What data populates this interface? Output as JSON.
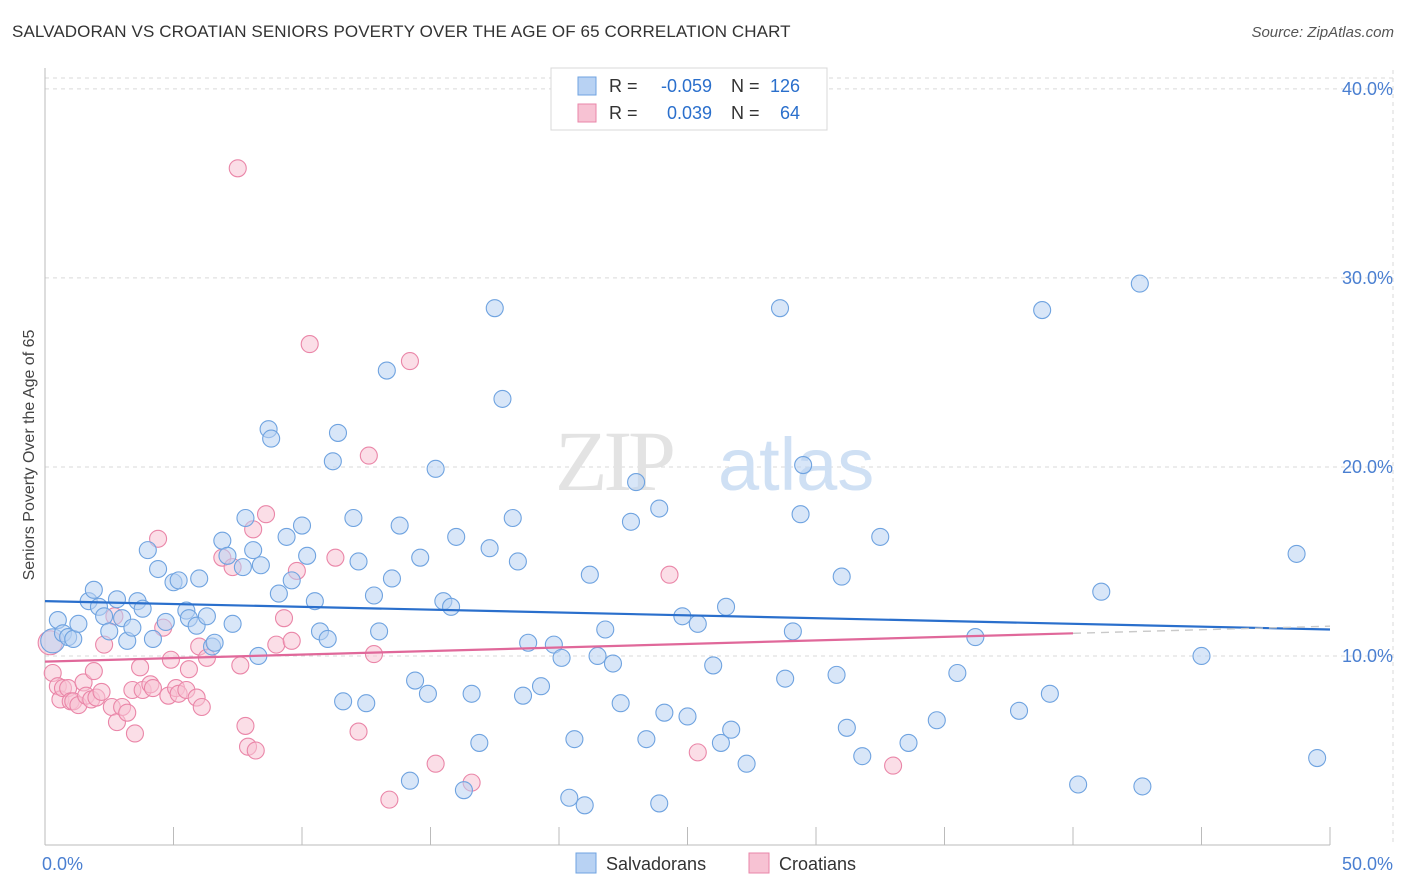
{
  "title": "SALVADORAN VS CROATIAN SENIORS POVERTY OVER THE AGE OF 65 CORRELATION CHART",
  "source": "Source: ZipAtlas.com",
  "watermark": {
    "zip": "ZIP",
    "atlas": "atlas"
  },
  "colors": {
    "blue": "#6fa3e0",
    "blue_fill": "#b8d2f3",
    "blue_line": "#2a6fcc",
    "pink": "#ea86a8",
    "pink_fill": "#f7c2d3",
    "pink_line": "#e0689a",
    "axis_text": "#4a7fd1",
    "grid": "#d9d9d9"
  },
  "legend": {
    "rows": [
      {
        "r_label": "R =",
        "r_value": "-0.059",
        "n_label": "N =",
        "n_value": "126",
        "series": "blue"
      },
      {
        "r_label": "R =",
        "r_value": "0.039",
        "n_label": "N =",
        "n_value": "64",
        "series": "pink"
      }
    ]
  },
  "chart_data": {
    "type": "scatter",
    "title": "SALVADORAN VS CROATIAN SENIORS POVERTY OVER THE AGE OF 65 CORRELATION CHART",
    "xlabel": "",
    "ylabel": "Seniors Poverty Over the Age of 65",
    "xlim": [
      0,
      50
    ],
    "ylim": [
      0,
      41
    ],
    "x_tick_labels": [
      "0.0%",
      "50.0%"
    ],
    "y_ticks": [
      10,
      20,
      30,
      40
    ],
    "y_tick_labels": [
      "10.0%",
      "20.0%",
      "30.0%",
      "40.0%"
    ],
    "series": [
      {
        "name": "Salvadorans",
        "color": "blue",
        "trend": {
          "x": [
            0,
            50
          ],
          "y": [
            12.9,
            11.4
          ],
          "dashed_from": null
        },
        "points": [
          [
            0.3,
            10.8
          ],
          [
            0.5,
            11.9
          ],
          [
            0.7,
            11.2
          ],
          [
            0.9,
            11.0
          ],
          [
            1.1,
            10.9
          ],
          [
            1.3,
            11.7
          ],
          [
            1.7,
            12.9
          ],
          [
            1.9,
            13.5
          ],
          [
            2.1,
            12.6
          ],
          [
            2.3,
            12.1
          ],
          [
            2.5,
            11.3
          ],
          [
            2.8,
            13.0
          ],
          [
            3.0,
            12.0
          ],
          [
            3.2,
            10.8
          ],
          [
            3.4,
            11.5
          ],
          [
            3.6,
            12.9
          ],
          [
            3.8,
            12.5
          ],
          [
            4.0,
            15.6
          ],
          [
            4.2,
            10.9
          ],
          [
            4.4,
            14.6
          ],
          [
            4.7,
            11.8
          ],
          [
            5.0,
            13.9
          ],
          [
            5.2,
            14.0
          ],
          [
            5.5,
            12.4
          ],
          [
            5.6,
            12.0
          ],
          [
            5.9,
            11.6
          ],
          [
            6.0,
            14.1
          ],
          [
            6.3,
            12.1
          ],
          [
            6.5,
            10.5
          ],
          [
            6.6,
            10.7
          ],
          [
            6.9,
            16.1
          ],
          [
            7.1,
            15.3
          ],
          [
            7.3,
            11.7
          ],
          [
            7.7,
            14.7
          ],
          [
            7.8,
            17.3
          ],
          [
            8.1,
            15.6
          ],
          [
            8.3,
            10.0
          ],
          [
            8.4,
            14.8
          ],
          [
            8.7,
            22.0
          ],
          [
            8.8,
            21.5
          ],
          [
            9.1,
            13.3
          ],
          [
            9.4,
            16.3
          ],
          [
            9.6,
            14.0
          ],
          [
            10.0,
            16.9
          ],
          [
            10.2,
            15.3
          ],
          [
            10.5,
            12.9
          ],
          [
            10.7,
            11.3
          ],
          [
            11.0,
            10.9
          ],
          [
            11.2,
            20.3
          ],
          [
            11.4,
            21.8
          ],
          [
            11.6,
            7.6
          ],
          [
            12.0,
            17.3
          ],
          [
            12.2,
            15.0
          ],
          [
            12.5,
            7.5
          ],
          [
            12.8,
            13.2
          ],
          [
            13.0,
            11.3
          ],
          [
            13.3,
            25.1
          ],
          [
            13.5,
            14.1
          ],
          [
            13.8,
            16.9
          ],
          [
            14.2,
            3.4
          ],
          [
            14.4,
            8.7
          ],
          [
            14.6,
            15.2
          ],
          [
            14.9,
            8.0
          ],
          [
            15.2,
            19.9
          ],
          [
            15.5,
            12.9
          ],
          [
            15.8,
            12.6
          ],
          [
            16.0,
            16.3
          ],
          [
            16.3,
            2.9
          ],
          [
            16.6,
            8.0
          ],
          [
            16.9,
            5.4
          ],
          [
            17.3,
            15.7
          ],
          [
            17.5,
            28.4
          ],
          [
            17.8,
            23.6
          ],
          [
            18.2,
            17.3
          ],
          [
            18.4,
            15.0
          ],
          [
            18.6,
            7.9
          ],
          [
            18.8,
            10.7
          ],
          [
            19.3,
            8.4
          ],
          [
            19.8,
            10.6
          ],
          [
            20.1,
            9.9
          ],
          [
            20.4,
            2.5
          ],
          [
            20.6,
            5.6
          ],
          [
            21.0,
            2.1
          ],
          [
            21.2,
            14.3
          ],
          [
            21.5,
            10.0
          ],
          [
            21.8,
            11.4
          ],
          [
            22.1,
            9.6
          ],
          [
            22.4,
            7.5
          ],
          [
            22.8,
            17.1
          ],
          [
            23.0,
            19.2
          ],
          [
            23.4,
            5.6
          ],
          [
            23.9,
            17.8
          ],
          [
            24.1,
            7.0
          ],
          [
            23.9,
            2.2
          ],
          [
            24.8,
            12.1
          ],
          [
            25.0,
            6.8
          ],
          [
            25.4,
            11.7
          ],
          [
            26.0,
            9.5
          ],
          [
            26.3,
            5.4
          ],
          [
            26.5,
            12.6
          ],
          [
            26.7,
            6.1
          ],
          [
            27.3,
            4.3
          ],
          [
            28.6,
            28.4
          ],
          [
            28.8,
            8.8
          ],
          [
            29.1,
            11.3
          ],
          [
            29.5,
            20.1
          ],
          [
            29.4,
            17.5
          ],
          [
            30.8,
            9.0
          ],
          [
            31.0,
            14.2
          ],
          [
            31.2,
            6.2
          ],
          [
            31.8,
            4.7
          ],
          [
            32.5,
            16.3
          ],
          [
            33.6,
            5.4
          ],
          [
            34.7,
            6.6
          ],
          [
            35.5,
            9.1
          ],
          [
            36.2,
            11.0
          ],
          [
            37.9,
            7.1
          ],
          [
            38.8,
            28.3
          ],
          [
            39.1,
            8.0
          ],
          [
            40.2,
            3.2
          ],
          [
            41.1,
            13.4
          ],
          [
            42.6,
            29.7
          ],
          [
            42.7,
            3.1
          ],
          [
            45.0,
            10.0
          ],
          [
            48.7,
            15.4
          ],
          [
            49.5,
            4.6
          ]
        ]
      },
      {
        "name": "Croatians",
        "color": "pink",
        "trend": {
          "x": [
            0,
            40
          ],
          "y": [
            9.7,
            11.2
          ],
          "dashed_from": 40
        },
        "points": [
          [
            0.2,
            10.7
          ],
          [
            0.3,
            9.1
          ],
          [
            0.5,
            8.4
          ],
          [
            0.6,
            7.7
          ],
          [
            0.7,
            8.3
          ],
          [
            0.9,
            8.3
          ],
          [
            1.0,
            7.6
          ],
          [
            1.1,
            7.6
          ],
          [
            1.3,
            7.4
          ],
          [
            1.5,
            8.6
          ],
          [
            1.6,
            7.9
          ],
          [
            1.8,
            7.7
          ],
          [
            1.9,
            9.2
          ],
          [
            2.0,
            7.8
          ],
          [
            2.2,
            8.1
          ],
          [
            2.3,
            10.6
          ],
          [
            2.6,
            7.3
          ],
          [
            2.7,
            12.1
          ],
          [
            2.8,
            6.5
          ],
          [
            3.0,
            7.3
          ],
          [
            3.2,
            7.0
          ],
          [
            3.4,
            8.2
          ],
          [
            3.5,
            5.9
          ],
          [
            3.7,
            9.4
          ],
          [
            3.8,
            8.2
          ],
          [
            4.1,
            8.5
          ],
          [
            4.2,
            8.3
          ],
          [
            4.4,
            16.2
          ],
          [
            4.6,
            11.5
          ],
          [
            4.8,
            7.9
          ],
          [
            4.9,
            9.8
          ],
          [
            5.1,
            8.3
          ],
          [
            5.2,
            8.0
          ],
          [
            5.5,
            8.2
          ],
          [
            5.6,
            9.3
          ],
          [
            5.9,
            7.8
          ],
          [
            6.0,
            10.5
          ],
          [
            6.1,
            7.3
          ],
          [
            6.3,
            9.9
          ],
          [
            6.9,
            15.2
          ],
          [
            7.3,
            14.7
          ],
          [
            7.5,
            35.8
          ],
          [
            7.6,
            9.5
          ],
          [
            7.8,
            6.3
          ],
          [
            7.9,
            5.2
          ],
          [
            8.1,
            16.7
          ],
          [
            8.2,
            5.0
          ],
          [
            8.6,
            17.5
          ],
          [
            9.0,
            10.6
          ],
          [
            9.3,
            12.0
          ],
          [
            9.6,
            10.8
          ],
          [
            9.8,
            14.5
          ],
          [
            10.3,
            26.5
          ],
          [
            11.3,
            15.2
          ],
          [
            12.2,
            6.0
          ],
          [
            12.6,
            20.6
          ],
          [
            12.8,
            10.1
          ],
          [
            13.4,
            2.4
          ],
          [
            14.2,
            25.6
          ],
          [
            15.2,
            4.3
          ],
          [
            16.6,
            3.3
          ],
          [
            24.3,
            14.3
          ],
          [
            25.4,
            4.9
          ],
          [
            33.0,
            4.2
          ]
        ]
      }
    ]
  },
  "legend_bottom": [
    {
      "label": "Salvadorans",
      "series": "blue"
    },
    {
      "label": "Croatians",
      "series": "pink"
    }
  ]
}
